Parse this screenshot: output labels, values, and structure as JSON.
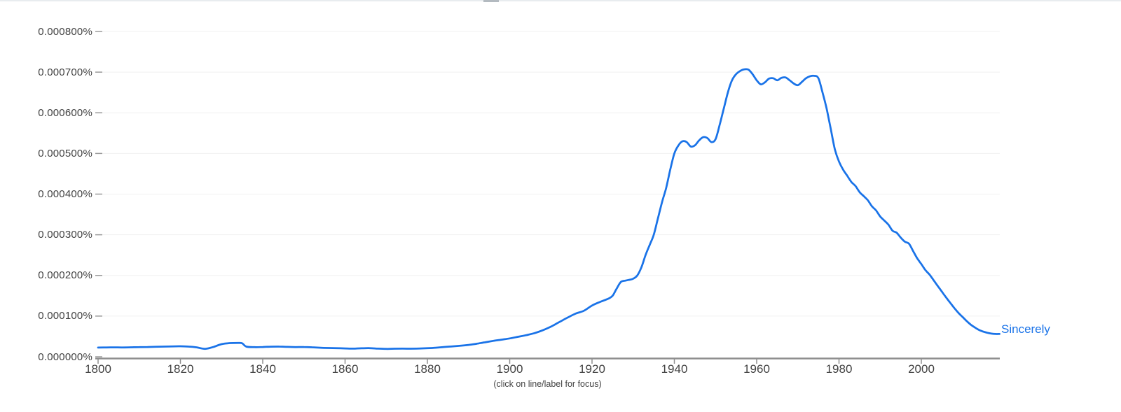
{
  "caption": "(click on line/label for focus)",
  "colors": {
    "series_blue": "#1a73e8",
    "axis": "#8f8f8f",
    "tick": "#9a9a9a",
    "gridline": "#f1f1f1",
    "axis_text": "#424242",
    "background": "#ffffff"
  },
  "chart_data": {
    "type": "line",
    "xlabel": "",
    "ylabel": "",
    "legend_position": "end-of-line",
    "grid": "horizontal-faint",
    "x_axis": {
      "range": [
        1800,
        2019
      ],
      "tick_values": [
        1800,
        1820,
        1840,
        1860,
        1880,
        1900,
        1920,
        1940,
        1960,
        1980,
        2000
      ]
    },
    "y_axis": {
      "range": [
        0,
        0.0008
      ],
      "unit": "%",
      "tick_labels": [
        "0.000800%",
        "0.000700%",
        "0.000600%",
        "0.000500%",
        "0.000400%",
        "0.000300%",
        "0.000200%",
        "0.000100%",
        "0.000000%"
      ],
      "tick_values": [
        0.0008,
        0.0007,
        0.0006,
        0.0005,
        0.0004,
        0.0003,
        0.0002,
        0.0001,
        0
      ]
    },
    "series": [
      {
        "name": "Sincerely",
        "color": "#1a73e8",
        "points": [
          [
            1800,
            2.25e-05
          ],
          [
            1802,
            2.28e-05
          ],
          [
            1804,
            2.3e-05
          ],
          [
            1806,
            2.28e-05
          ],
          [
            1808,
            2.32e-05
          ],
          [
            1810,
            2.38e-05
          ],
          [
            1812,
            2.4e-05
          ],
          [
            1814,
            2.45e-05
          ],
          [
            1816,
            2.5e-05
          ],
          [
            1818,
            2.55e-05
          ],
          [
            1820,
            2.58e-05
          ],
          [
            1822,
            2.5e-05
          ],
          [
            1824,
            2.3e-05
          ],
          [
            1826,
            1.95e-05
          ],
          [
            1828,
            2.4e-05
          ],
          [
            1830,
            3.1e-05
          ],
          [
            1832,
            3.35e-05
          ],
          [
            1834,
            3.4e-05
          ],
          [
            1835,
            3.3e-05
          ],
          [
            1836,
            2.5e-05
          ],
          [
            1838,
            2.35e-05
          ],
          [
            1840,
            2.4e-05
          ],
          [
            1842,
            2.48e-05
          ],
          [
            1844,
            2.5e-05
          ],
          [
            1846,
            2.42e-05
          ],
          [
            1848,
            2.38e-05
          ],
          [
            1850,
            2.4e-05
          ],
          [
            1852,
            2.32e-05
          ],
          [
            1854,
            2.22e-05
          ],
          [
            1856,
            2.15e-05
          ],
          [
            1858,
            2.12e-05
          ],
          [
            1860,
            2.05e-05
          ],
          [
            1862,
            2e-05
          ],
          [
            1864,
            2.08e-05
          ],
          [
            1866,
            2.12e-05
          ],
          [
            1868,
            2e-05
          ],
          [
            1870,
            1.92e-05
          ],
          [
            1872,
            1.98e-05
          ],
          [
            1874,
            2e-05
          ],
          [
            1876,
            1.98e-05
          ],
          [
            1878,
            2.02e-05
          ],
          [
            1880,
            2.1e-05
          ],
          [
            1882,
            2.22e-05
          ],
          [
            1884,
            2.4e-05
          ],
          [
            1886,
            2.55e-05
          ],
          [
            1888,
            2.7e-05
          ],
          [
            1890,
            2.9e-05
          ],
          [
            1892,
            3.2e-05
          ],
          [
            1894,
            3.55e-05
          ],
          [
            1896,
            3.9e-05
          ],
          [
            1898,
            4.2e-05
          ],
          [
            1900,
            4.5e-05
          ],
          [
            1902,
            4.9e-05
          ],
          [
            1904,
            5.3e-05
          ],
          [
            1906,
            5.8e-05
          ],
          [
            1908,
            6.5e-05
          ],
          [
            1910,
            7.4e-05
          ],
          [
            1912,
            8.5e-05
          ],
          [
            1914,
            9.6e-05
          ],
          [
            1916,
            0.000106
          ],
          [
            1918,
            0.000113
          ],
          [
            1920,
            0.000126
          ],
          [
            1922,
            0.000135
          ],
          [
            1924,
            0.000143
          ],
          [
            1925,
            0.00015
          ],
          [
            1926,
            0.000168
          ],
          [
            1927,
            0.000184
          ],
          [
            1928,
            0.000187
          ],
          [
            1929,
            0.000189
          ],
          [
            1930,
            0.000192
          ],
          [
            1931,
            0.0002
          ],
          [
            1932,
            0.00022
          ],
          [
            1933,
            0.00025
          ],
          [
            1934,
            0.000275
          ],
          [
            1935,
            0.0003
          ],
          [
            1936,
            0.00034
          ],
          [
            1937,
            0.00038
          ],
          [
            1938,
            0.000415
          ],
          [
            1939,
            0.00046
          ],
          [
            1940,
            0.0005
          ],
          [
            1941,
            0.00052
          ],
          [
            1942,
            0.00053
          ],
          [
            1943,
            0.000528
          ],
          [
            1944,
            0.000517
          ],
          [
            1945,
            0.00052
          ],
          [
            1946,
            0.000532
          ],
          [
            1947,
            0.00054
          ],
          [
            1948,
            0.000538
          ],
          [
            1949,
            0.000528
          ],
          [
            1950,
            0.000535
          ],
          [
            1951,
            0.00057
          ],
          [
            1952,
            0.00061
          ],
          [
            1953,
            0.00065
          ],
          [
            1954,
            0.00068
          ],
          [
            1955,
            0.000695
          ],
          [
            1956,
            0.000703
          ],
          [
            1957,
            0.000707
          ],
          [
            1958,
            0.000706
          ],
          [
            1959,
            0.000695
          ],
          [
            1960,
            0.00068
          ],
          [
            1961,
            0.00067
          ],
          [
            1962,
            0.000675
          ],
          [
            1963,
            0.000684
          ],
          [
            1964,
            0.000685
          ],
          [
            1965,
            0.00068
          ],
          [
            1966,
            0.000686
          ],
          [
            1967,
            0.000687
          ],
          [
            1968,
            0.00068
          ],
          [
            1969,
            0.000672
          ],
          [
            1970,
            0.000668
          ],
          [
            1971,
            0.000676
          ],
          [
            1972,
            0.000685
          ],
          [
            1973,
            0.00069
          ],
          [
            1974,
            0.000691
          ],
          [
            1975,
            0.000685
          ],
          [
            1976,
            0.00065
          ],
          [
            1977,
            0.00061
          ],
          [
            1978,
            0.00056
          ],
          [
            1979,
            0.00051
          ],
          [
            1980,
            0.00048
          ],
          [
            1981,
            0.00046
          ],
          [
            1982,
            0.000445
          ],
          [
            1983,
            0.00043
          ],
          [
            1984,
            0.00042
          ],
          [
            1985,
            0.000405
          ],
          [
            1986,
            0.000395
          ],
          [
            1987,
            0.000385
          ],
          [
            1988,
            0.00037
          ],
          [
            1989,
            0.00036
          ],
          [
            1990,
            0.000345
          ],
          [
            1991,
            0.000335
          ],
          [
            1992,
            0.000325
          ],
          [
            1993,
            0.00031
          ],
          [
            1994,
            0.000305
          ],
          [
            1995,
            0.000293
          ],
          [
            1996,
            0.000283
          ],
          [
            1997,
            0.000278
          ],
          [
            1998,
            0.00026
          ],
          [
            1999,
            0.000242
          ],
          [
            2000,
            0.000228
          ],
          [
            2001,
            0.000213
          ],
          [
            2002,
            0.000202
          ],
          [
            2003,
            0.000188
          ],
          [
            2004,
            0.000174
          ],
          [
            2005,
            0.00016
          ],
          [
            2006,
            0.000146
          ],
          [
            2007,
            0.000133
          ],
          [
            2008,
            0.00012
          ],
          [
            2009,
            0.000108
          ],
          [
            2010,
            9.8e-05
          ],
          [
            2011,
            8.8e-05
          ],
          [
            2012,
            7.9e-05
          ],
          [
            2013,
            7.2e-05
          ],
          [
            2014,
            6.6e-05
          ],
          [
            2015,
            6.2e-05
          ],
          [
            2016,
            5.9e-05
          ],
          [
            2017,
            5.7e-05
          ],
          [
            2018,
            5.6e-05
          ],
          [
            2019,
            5.6e-05
          ]
        ]
      }
    ]
  }
}
